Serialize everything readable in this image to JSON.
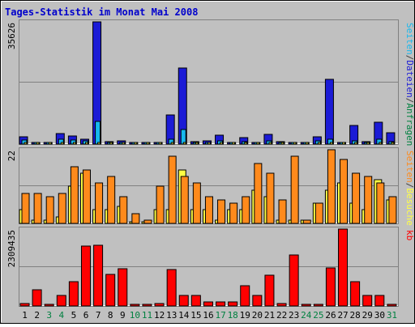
{
  "title": "Tages-Statistik im Monat Mai 2008",
  "colors": {
    "background": "#c0c0c0",
    "title": "#0000cc",
    "frame": "#808080",
    "hits": "#1b1bd6",
    "files": "#16b8ee",
    "pages": "#ffff44",
    "visits": "#ff8a1c",
    "kb": "#ff0000",
    "weekend_label": "#008040",
    "weekday_label": "#000000"
  },
  "chart_data": [
    {
      "type": "bar",
      "panel": "top",
      "ymax_label": "35626",
      "ylim": [
        0,
        35626
      ],
      "right_label": [
        {
          "text": "Seiten",
          "color": "#16b8ee"
        },
        {
          "text": "/",
          "color": "#404040"
        },
        {
          "text": "Dateien",
          "color": "#1b1bd6"
        },
        {
          "text": "/",
          "color": "#404040"
        },
        {
          "text": "Anfragen",
          "color": "#008040"
        }
      ],
      "categories": [
        "1",
        "2",
        "3",
        "4",
        "5",
        "6",
        "7",
        "8",
        "9",
        "10",
        "11",
        "12",
        "13",
        "14",
        "15",
        "16",
        "17",
        "18",
        "19",
        "20",
        "21",
        "22",
        "23",
        "24",
        "25",
        "26",
        "27",
        "28",
        "29",
        "30",
        "31"
      ],
      "series": [
        {
          "values": [
            2200,
            400,
            400,
            3000,
            2400,
            1400,
            35626,
            600,
            900,
            300,
            300,
            400,
            8500,
            22200,
            800,
            900,
            2600,
            500,
            2000,
            400,
            2800,
            600,
            400,
            400,
            2200,
            18800,
            400,
            5400,
            800,
            6300,
            3300
          ]
        },
        {
          "values": [
            1200,
            200,
            200,
            1500,
            1100,
            900,
            6600,
            300,
            400,
            200,
            200,
            200,
            1300,
            4300,
            400,
            400,
            1000,
            200,
            700,
            200,
            1000,
            300,
            200,
            200,
            900,
            1300,
            200,
            900,
            300,
            1300,
            800
          ]
        },
        {
          "values": [
            300,
            100,
            100,
            400,
            300,
            200,
            500,
            100,
            100,
            100,
            100,
            100,
            300,
            400,
            100,
            100,
            300,
            100,
            200,
            100,
            300,
            100,
            100,
            100,
            300,
            400,
            100,
            300,
            100,
            400,
            300
          ]
        }
      ]
    },
    {
      "type": "bar",
      "panel": "middle",
      "ymax_label": "22",
      "ylim": [
        0,
        22
      ],
      "right_label": [
        {
          "text": "Seiten",
          "color": "#ff8a1c"
        },
        {
          "text": "/",
          "color": "#404040"
        },
        {
          "text": "Besuche",
          "color": "#ffff44"
        }
      ],
      "categories": [
        "1",
        "2",
        "3",
        "4",
        "5",
        "6",
        "7",
        "8",
        "9",
        "10",
        "11",
        "12",
        "13",
        "14",
        "15",
        "16",
        "17",
        "18",
        "19",
        "20",
        "21",
        "22",
        "23",
        "24",
        "25",
        "26",
        "27",
        "28",
        "29",
        "30",
        "31"
      ],
      "series": [
        {
          "values": [
            4,
            1,
            1,
            2,
            11,
            15,
            4,
            4,
            5,
            0,
            0,
            4,
            4,
            16,
            4,
            4,
            1,
            4,
            4,
            10,
            8,
            1,
            1,
            1,
            6,
            10,
            12,
            6,
            4,
            13,
            7
          ]
        },
        {
          "values": [
            9,
            9,
            8,
            9,
            17,
            16,
            12,
            14,
            8,
            3,
            1,
            11,
            20,
            14,
            12,
            8,
            7,
            6,
            8,
            18,
            15,
            7,
            20,
            1,
            6,
            22,
            19,
            15,
            14,
            12,
            8
          ]
        }
      ]
    },
    {
      "type": "bar",
      "panel": "bottom",
      "ymax_label": "2309435",
      "ylim": [
        0,
        2309435
      ],
      "right_label": [
        {
          "text": "kb",
          "color": "#ff0000"
        }
      ],
      "categories": [
        "1",
        "2",
        "3",
        "4",
        "5",
        "6",
        "7",
        "8",
        "9",
        "10",
        "11",
        "12",
        "13",
        "14",
        "15",
        "16",
        "17",
        "18",
        "19",
        "20",
        "21",
        "22",
        "23",
        "24",
        "25",
        "26",
        "27",
        "28",
        "29",
        "30",
        "31"
      ],
      "series": [
        {
          "values": [
            80000,
            480000,
            20000,
            320000,
            720000,
            1800000,
            1820000,
            950000,
            1130000,
            20000,
            20000,
            80000,
            1100000,
            320000,
            320000,
            130000,
            130000,
            130000,
            600000,
            320000,
            930000,
            80000,
            1530000,
            20000,
            50000,
            1150000,
            2309435,
            720000,
            320000,
            320000,
            20000
          ]
        }
      ]
    }
  ],
  "x_labels": [
    {
      "text": "1",
      "weekend": false
    },
    {
      "text": "2",
      "weekend": false
    },
    {
      "text": "3",
      "weekend": true
    },
    {
      "text": "4",
      "weekend": true
    },
    {
      "text": "5",
      "weekend": false
    },
    {
      "text": "6",
      "weekend": false
    },
    {
      "text": "7",
      "weekend": false
    },
    {
      "text": "8",
      "weekend": false
    },
    {
      "text": "9",
      "weekend": false
    },
    {
      "text": "10",
      "weekend": true
    },
    {
      "text": "11",
      "weekend": true
    },
    {
      "text": "12",
      "weekend": false
    },
    {
      "text": "13",
      "weekend": false
    },
    {
      "text": "14",
      "weekend": false
    },
    {
      "text": "15",
      "weekend": false
    },
    {
      "text": "16",
      "weekend": false
    },
    {
      "text": "17",
      "weekend": true
    },
    {
      "text": "18",
      "weekend": true
    },
    {
      "text": "19",
      "weekend": false
    },
    {
      "text": "20",
      "weekend": false
    },
    {
      "text": "21",
      "weekend": false
    },
    {
      "text": "22",
      "weekend": false
    },
    {
      "text": "23",
      "weekend": false
    },
    {
      "text": "24",
      "weekend": true
    },
    {
      "text": "25",
      "weekend": true
    },
    {
      "text": "26",
      "weekend": false
    },
    {
      "text": "27",
      "weekend": false
    },
    {
      "text": "28",
      "weekend": false
    },
    {
      "text": "29",
      "weekend": false
    },
    {
      "text": "30",
      "weekend": false
    },
    {
      "text": "31",
      "weekend": true
    }
  ]
}
